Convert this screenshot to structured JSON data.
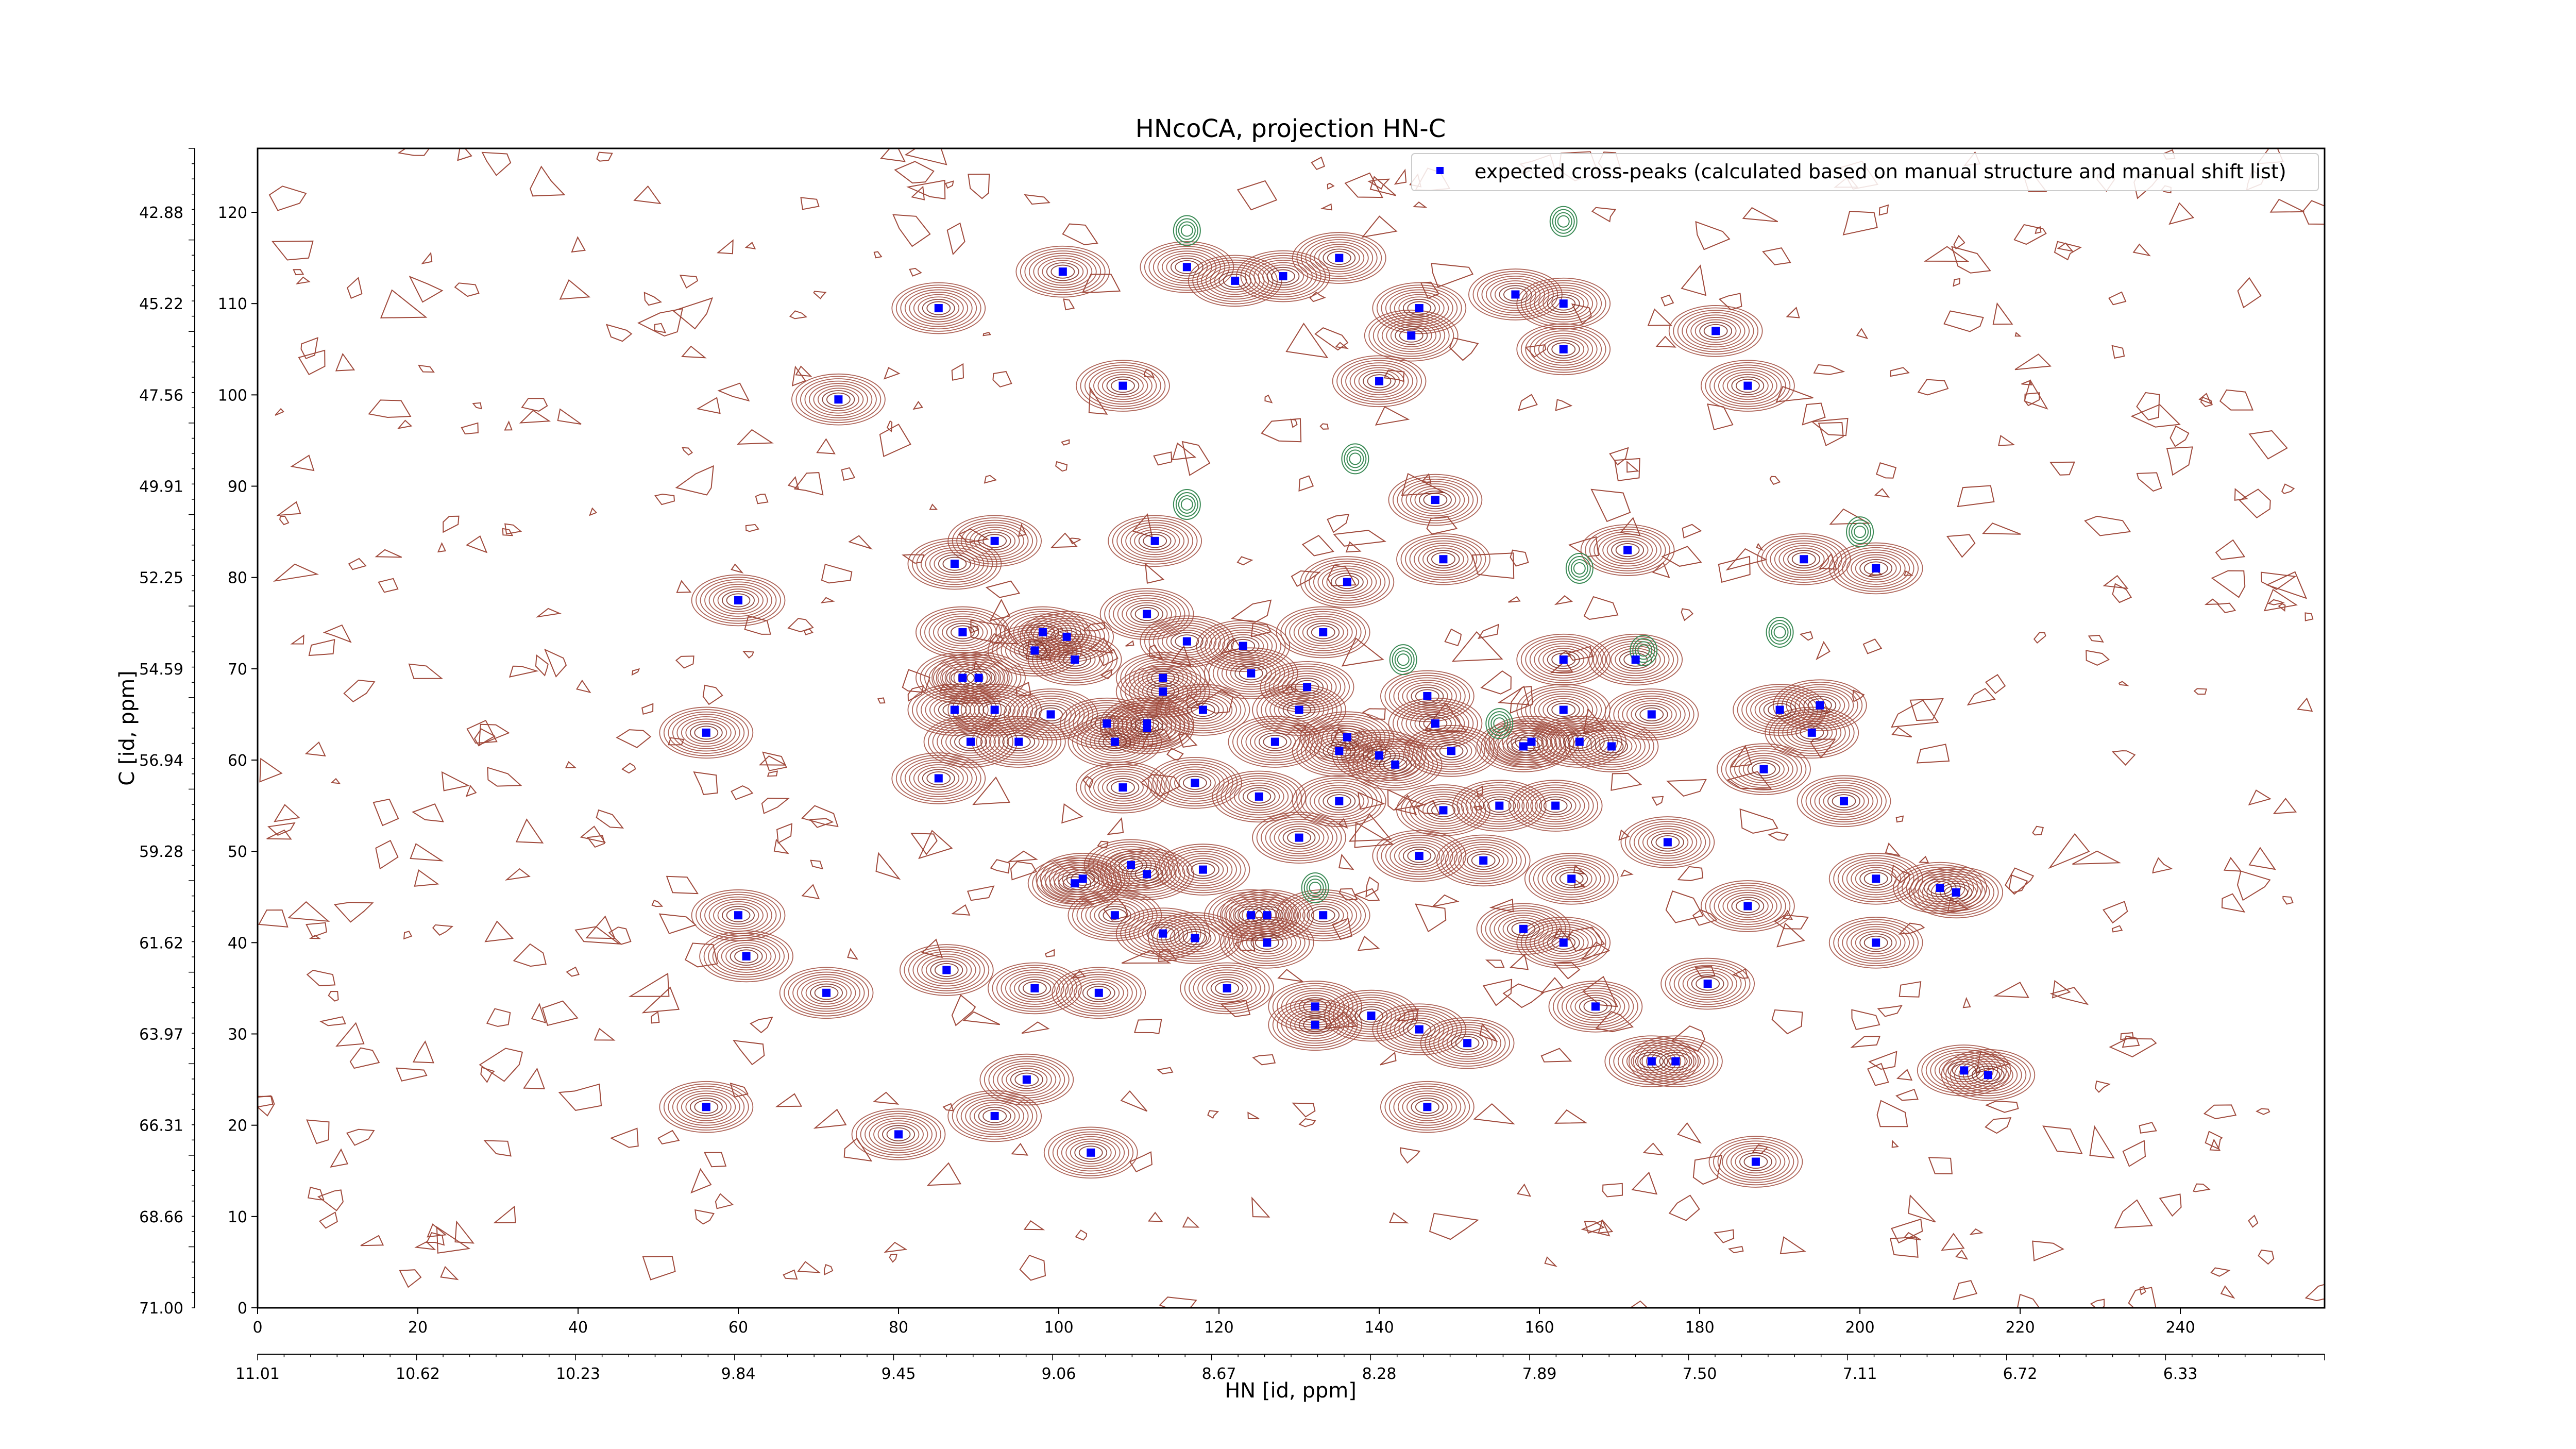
{
  "chart_data": {
    "type": "scatter",
    "title": "HNcoCA, projection HN-C",
    "xlabel": "HN [id, ppm]",
    "ylabel": "C [id, ppm]",
    "xlim": [
      0,
      258
    ],
    "ylim": [
      0,
      127
    ],
    "x_ticks": [
      0,
      20,
      40,
      60,
      80,
      100,
      120,
      140,
      160,
      180,
      200,
      220,
      240
    ],
    "y_ticks": [
      0,
      10,
      20,
      30,
      40,
      50,
      60,
      70,
      80,
      90,
      100,
      110,
      120
    ],
    "secondary_x_ticks": [
      "11.01",
      "10.62",
      "10.23",
      "9.84",
      "9.45",
      "9.06",
      "8.67",
      "8.28",
      "7.89",
      "7.50",
      "7.11",
      "6.72",
      "6.33"
    ],
    "secondary_y_ticks": [
      "71.00",
      "68.66",
      "66.31",
      "63.97",
      "61.62",
      "59.28",
      "56.94",
      "54.59",
      "52.25",
      "49.91",
      "47.56",
      "45.22",
      "42.88"
    ],
    "grid": false,
    "legend": {
      "position": "top-right",
      "entries": [
        "expected cross-peaks (calculated based on manual structure and manual shift list)"
      ]
    },
    "series": [
      {
        "name": "expected cross-peaks (calculated based on manual structure and manual shift list)",
        "color": "#0000ff",
        "marker": "square",
        "points": [
          [
            100.5,
            113.5
          ],
          [
            116,
            114
          ],
          [
            122,
            112.5
          ],
          [
            128,
            113
          ],
          [
            135,
            115
          ],
          [
            85,
            109.5
          ],
          [
            145,
            109.5
          ],
          [
            157,
            111
          ],
          [
            163,
            110
          ],
          [
            144,
            106.5
          ],
          [
            163,
            105
          ],
          [
            182,
            107
          ],
          [
            72.5,
            99.5
          ],
          [
            108,
            101
          ],
          [
            140,
            101.5
          ],
          [
            186,
            101
          ],
          [
            147,
            88.5
          ],
          [
            92,
            84
          ],
          [
            112,
            84
          ],
          [
            87,
            81.5
          ],
          [
            148,
            82
          ],
          [
            136,
            79.5
          ],
          [
            171,
            83
          ],
          [
            193,
            82
          ],
          [
            202,
            81
          ],
          [
            60,
            77.5
          ],
          [
            111,
            76
          ],
          [
            88,
            74
          ],
          [
            98,
            74
          ],
          [
            101,
            73.5
          ],
          [
            102,
            71
          ],
          [
            97,
            72
          ],
          [
            123,
            72.5
          ],
          [
            133,
            74
          ],
          [
            116,
            73
          ],
          [
            88,
            69
          ],
          [
            90,
            69
          ],
          [
            113,
            69
          ],
          [
            113,
            67.5
          ],
          [
            124,
            69.5
          ],
          [
            131,
            68
          ],
          [
            146,
            67
          ],
          [
            163,
            71
          ],
          [
            172,
            71
          ],
          [
            87,
            65.5
          ],
          [
            92,
            65.5
          ],
          [
            99,
            65
          ],
          [
            106,
            64
          ],
          [
            111,
            64
          ],
          [
            111,
            63.5
          ],
          [
            118,
            65.5
          ],
          [
            130,
            65.5
          ],
          [
            147,
            64
          ],
          [
            163,
            65.5
          ],
          [
            174,
            65
          ],
          [
            159,
            62
          ],
          [
            158,
            61.5
          ],
          [
            149,
            61
          ],
          [
            165,
            62
          ],
          [
            169,
            61.5
          ],
          [
            188,
            59
          ],
          [
            194,
            63
          ],
          [
            195,
            66
          ],
          [
            190,
            65.5
          ],
          [
            56,
            63
          ],
          [
            89,
            62
          ],
          [
            95,
            62
          ],
          [
            107,
            62
          ],
          [
            127,
            62
          ],
          [
            136,
            62.5
          ],
          [
            135,
            61
          ],
          [
            140,
            60.5
          ],
          [
            142,
            59.5
          ],
          [
            85,
            58
          ],
          [
            108,
            57
          ],
          [
            117,
            57.5
          ],
          [
            125,
            56
          ],
          [
            135,
            55.5
          ],
          [
            148,
            54.5
          ],
          [
            155,
            55
          ],
          [
            162,
            55
          ],
          [
            198,
            55.5
          ],
          [
            176,
            51
          ],
          [
            130,
            51.5
          ],
          [
            145,
            49.5
          ],
          [
            153,
            49
          ],
          [
            164,
            47
          ],
          [
            202,
            47
          ],
          [
            210,
            46
          ],
          [
            109,
            48.5
          ],
          [
            111,
            47.5
          ],
          [
            118,
            48
          ],
          [
            124,
            43
          ],
          [
            126,
            43
          ],
          [
            102,
            46.5
          ],
          [
            103,
            47
          ],
          [
            107,
            43
          ],
          [
            113,
            41
          ],
          [
            117,
            40.5
          ],
          [
            126,
            40
          ],
          [
            133,
            43
          ],
          [
            60,
            43
          ],
          [
            61,
            38.5
          ],
          [
            71,
            34.5
          ],
          [
            86,
            37
          ],
          [
            97,
            35
          ],
          [
            105,
            34.5
          ],
          [
            121,
            35
          ],
          [
            132,
            33
          ],
          [
            132,
            31
          ],
          [
            139,
            32
          ],
          [
            145,
            30.5
          ],
          [
            151,
            29
          ],
          [
            167,
            33
          ],
          [
            181,
            35.5
          ],
          [
            177,
            27
          ],
          [
            174,
            27
          ],
          [
            202,
            40
          ],
          [
            212,
            45.5
          ],
          [
            213,
            26
          ],
          [
            216,
            25.5
          ],
          [
            163,
            40
          ],
          [
            158,
            41.5
          ],
          [
            186,
            44
          ],
          [
            96,
            25
          ],
          [
            92,
            21
          ],
          [
            56,
            22
          ],
          [
            80,
            19
          ],
          [
            104,
            17
          ],
          [
            146,
            22
          ],
          [
            187,
            16
          ]
        ]
      }
    ]
  }
}
